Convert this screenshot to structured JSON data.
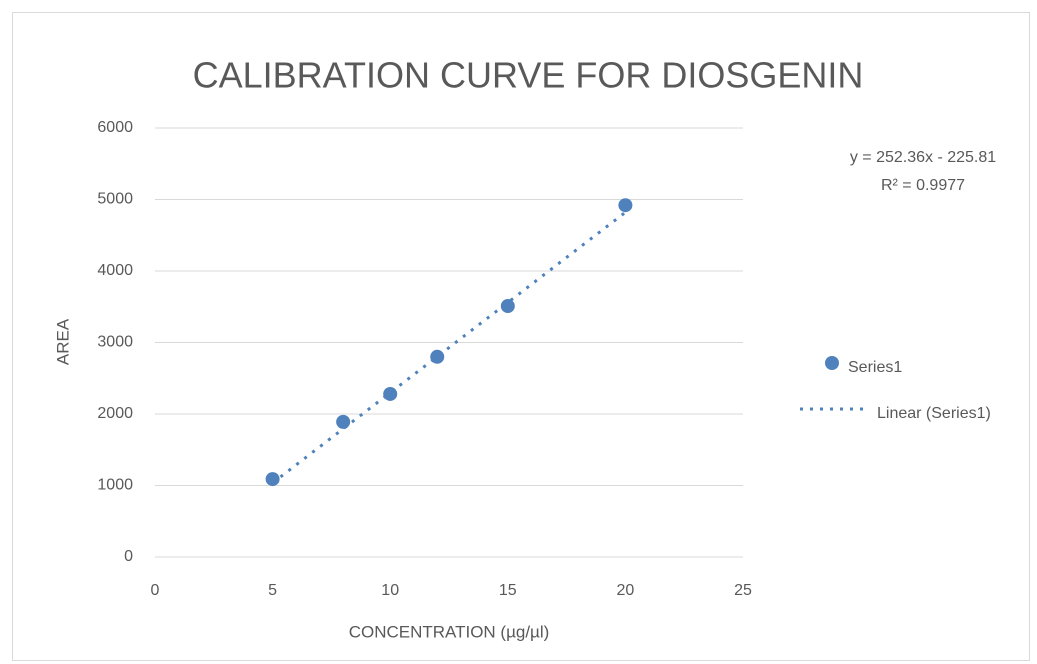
{
  "chart_data": {
    "type": "scatter",
    "title": "CALIBRATION CURVE FOR DIOSGENIN",
    "x_label": "CONCENTRATION (µg/µl)",
    "y_label": "AREA",
    "series": [
      {
        "name": "Series1",
        "color": "#4f81bd",
        "style": "marker",
        "x": [
          5,
          8,
          10,
          12,
          15,
          20
        ],
        "values": [
          1090,
          1890,
          2280,
          2800,
          3510,
          4920
        ]
      },
      {
        "name": "Linear (Series1)",
        "color": "#4f81bd",
        "style": "dotted",
        "x": [
          5,
          20
        ],
        "values": [
          1036,
          4821
        ]
      }
    ],
    "annotations": [
      "y = 252.36x - 225.81",
      "R² = 0.9977"
    ],
    "xlim": [
      0,
      25
    ],
    "xticks": [
      0,
      5,
      10,
      15,
      20,
      25
    ],
    "ylim": [
      0,
      6000
    ],
    "yticks": [
      0,
      1000,
      2000,
      3000,
      4000,
      5000,
      6000
    ],
    "grid": true,
    "legend": "right"
  }
}
